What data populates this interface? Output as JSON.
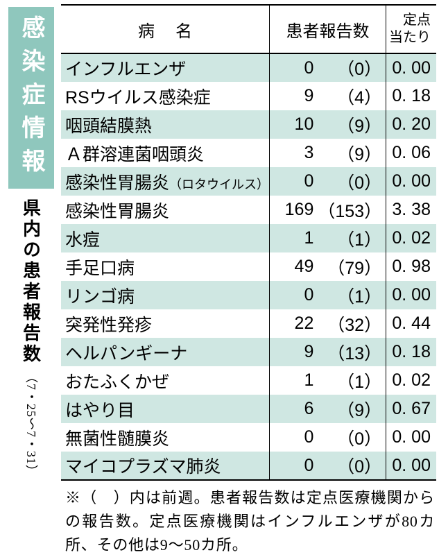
{
  "badge": "感染症情報",
  "subtitle": "県内の患者報告数",
  "period": "（7・25〜7・31）",
  "headers": {
    "name": "病名",
    "count": "患者報告数",
    "per": "定点\n当たり"
  },
  "rows": [
    {
      "name": "インフルエンザ",
      "cur": "0",
      "prev": "（0）",
      "per": "0. 00"
    },
    {
      "name": "RSウイルス感染症",
      "cur": "9",
      "prev": "（4）",
      "per": "0. 18"
    },
    {
      "name": "咽頭結膜熱",
      "cur": "10",
      "prev": "（9）",
      "per": "0. 20"
    },
    {
      "name": "Ａ群溶連菌咽頭炎",
      "cur": "3",
      "prev": "（9）",
      "per": "0. 06"
    },
    {
      "name": "感染性胃腸炎",
      "suffix": "（ロタウイルス）",
      "cur": "0",
      "prev": "（0）",
      "per": "0. 00"
    },
    {
      "name": "感染性胃腸炎",
      "cur": "169",
      "prev": "（153）",
      "per": "3. 38"
    },
    {
      "name": "水痘",
      "cur": "1",
      "prev": "（1）",
      "per": "0. 02"
    },
    {
      "name": "手足口病",
      "cur": "49",
      "prev": "（79）",
      "per": "0. 98"
    },
    {
      "name": "リンゴ病",
      "cur": "0",
      "prev": "（1）",
      "per": "0. 00"
    },
    {
      "name": "突発性発疹",
      "cur": "22",
      "prev": "（32）",
      "per": "0. 44"
    },
    {
      "name": "ヘルパンギーナ",
      "cur": "9",
      "prev": "（13）",
      "per": "0. 18"
    },
    {
      "name": "おたふくかぜ",
      "cur": "1",
      "prev": "（1）",
      "per": "0. 02"
    },
    {
      "name": "はやり目",
      "cur": "6",
      "prev": "（9）",
      "per": "0. 67"
    },
    {
      "name": "無菌性髄膜炎",
      "cur": "0",
      "prev": "（0）",
      "per": "0. 00"
    },
    {
      "name": "マイコプラズマ肺炎",
      "cur": "0",
      "prev": "（0）",
      "per": "0. 00"
    }
  ],
  "footnote": "※（　）内は前週。患者報告数は定点医療機関からの報告数。定点医療機関はインフルエンザが80カ所、その他は9〜50カ所。"
}
